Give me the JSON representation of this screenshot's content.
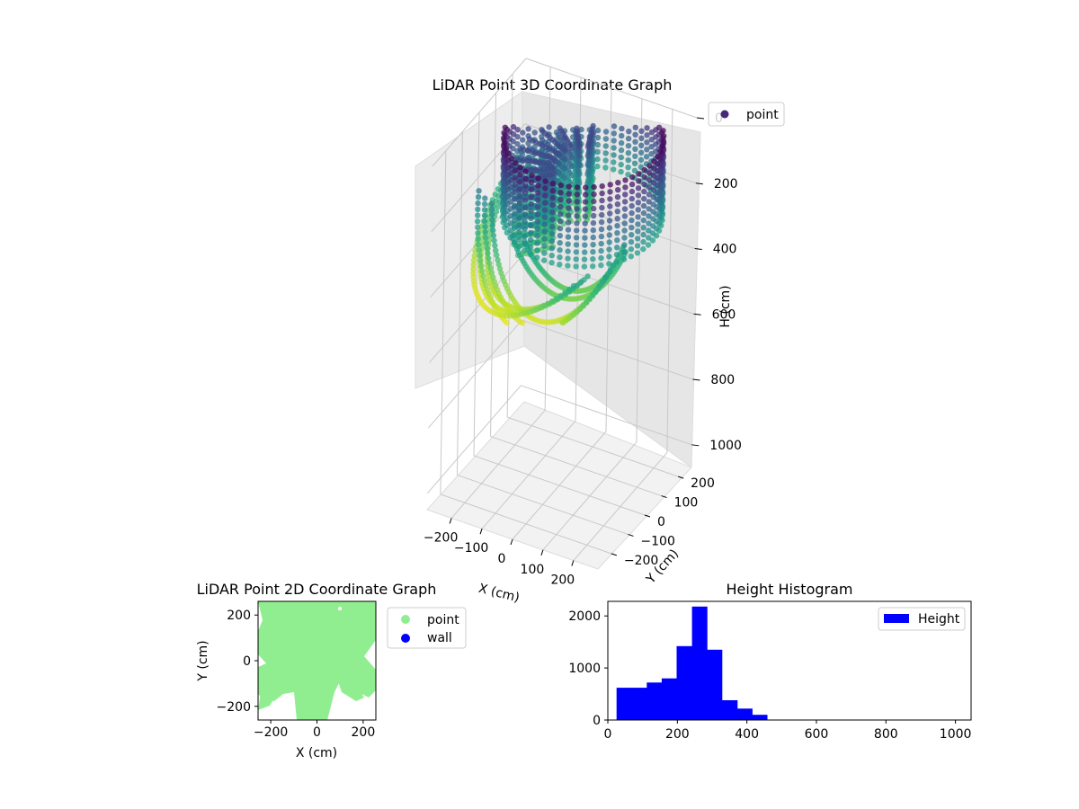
{
  "figure": {
    "background": "#ffffff"
  },
  "chart_data": [
    {
      "id": "lidar-3d",
      "type": "scatter",
      "title": "LiDAR Point 3D Coordinate Graph",
      "xlabel": "X (cm)",
      "ylabel": "Y (cm)",
      "zlabel": "H (cm)",
      "xlim": [
        -280,
        280
      ],
      "ylim": [
        -280,
        280
      ],
      "zlim": [
        0,
        1050
      ],
      "z_inverted": true,
      "xticks": [
        -200,
        -100,
        0,
        100,
        200
      ],
      "yticks": [
        -200,
        -100,
        0,
        100,
        200
      ],
      "zticks": [
        0,
        200,
        400,
        600,
        800,
        1000
      ],
      "legend": {
        "location": "top-right",
        "entries": [
          {
            "label": "point",
            "color": "#482878"
          }
        ]
      },
      "colormap": "viridis",
      "series": [
        {
          "name": "wall ring",
          "kind": "ring",
          "radius": 230,
          "h_min": 10,
          "h_max": 260
        },
        {
          "name": "hanging curtains",
          "kind": "curtain",
          "angles_deg": [
            110,
            125,
            140,
            155,
            170,
            185,
            200,
            215,
            230
          ],
          "h_min": 100,
          "h_max": 330
        },
        {
          "name": "arcs",
          "arcs": [
            {
              "start_deg": 200,
              "end_deg": 320,
              "h_start": 130,
              "h_end": 440,
              "radius": 270
            },
            {
              "start_deg": 205,
              "end_deg": 325,
              "h_start": 140,
              "h_end": 430,
              "radius": 250
            },
            {
              "start_deg": 210,
              "end_deg": 330,
              "h_start": 145,
              "h_end": 420,
              "radius": 230
            },
            {
              "start_deg": 150,
              "end_deg": 300,
              "h_start": 150,
              "h_end": 430,
              "radius": 280
            },
            {
              "start_deg": 155,
              "end_deg": 305,
              "h_start": 160,
              "h_end": 420,
              "radius": 260
            },
            {
              "start_deg": 160,
              "end_deg": 310,
              "h_start": 165,
              "h_end": 410,
              "radius": 240
            },
            {
              "start_deg": 240,
              "end_deg": 350,
              "h_start": 200,
              "h_end": 360,
              "radius": 200
            },
            {
              "start_deg": 250,
              "end_deg": 355,
              "h_start": 210,
              "h_end": 350,
              "radius": 180
            }
          ]
        }
      ]
    },
    {
      "id": "lidar-2d",
      "type": "scatter",
      "title": "LiDAR Point 2D Coordinate Graph",
      "xlabel": "X (cm)",
      "ylabel": "Y (cm)",
      "xlim": [
        -255,
        255
      ],
      "ylim": [
        -260,
        260
      ],
      "xticks": [
        -200,
        0,
        200
      ],
      "yticks": [
        -200,
        0,
        200
      ],
      "legend": {
        "location": "outside-right",
        "entries": [
          {
            "label": "point",
            "color": "#90ee90"
          },
          {
            "label": "wall",
            "color": "#0000ff"
          }
        ]
      },
      "series": [
        {
          "name": "point",
          "color": "#90ee90",
          "description_region": "dense cloud covering most of area"
        }
      ]
    },
    {
      "id": "height-hist",
      "type": "bar",
      "title": "Height Histogram",
      "xlabel": "",
      "ylabel": "",
      "xlim": [
        0,
        1045
      ],
      "ylim": [
        0,
        2280
      ],
      "xticks": [
        0,
        200,
        400,
        600,
        800,
        1000
      ],
      "yticks": [
        0,
        1000,
        2000
      ],
      "legend": {
        "location": "top-right",
        "entries": [
          {
            "label": "Height",
            "color": "#0000ff"
          }
        ]
      },
      "bar_color": "#0000ff",
      "bins": [
        {
          "from": 25,
          "to": 68,
          "count": 620
        },
        {
          "from": 68,
          "to": 112,
          "count": 620
        },
        {
          "from": 112,
          "to": 155,
          "count": 720
        },
        {
          "from": 155,
          "to": 198,
          "count": 800
        },
        {
          "from": 198,
          "to": 242,
          "count": 1420
        },
        {
          "from": 242,
          "to": 285,
          "count": 2180
        },
        {
          "from": 285,
          "to": 328,
          "count": 1350
        },
        {
          "from": 328,
          "to": 372,
          "count": 380
        },
        {
          "from": 372,
          "to": 415,
          "count": 220
        },
        {
          "from": 415,
          "to": 458,
          "count": 100
        }
      ]
    }
  ]
}
